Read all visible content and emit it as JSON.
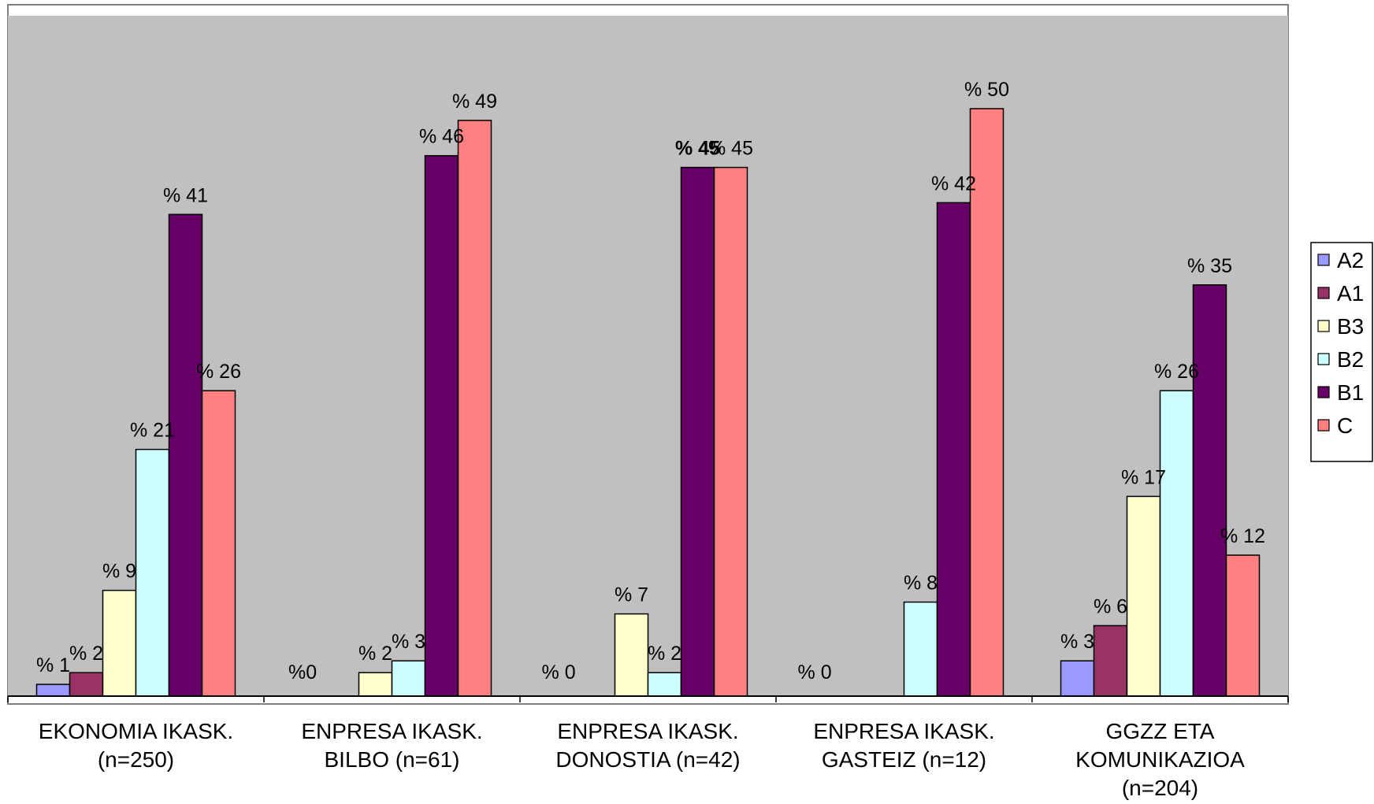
{
  "chart_data": {
    "type": "bar",
    "categories": [
      [
        "EKONOMIA IKASK.",
        "(n=250)"
      ],
      [
        "ENPRESA IKASK.",
        "BILBO (n=61)"
      ],
      [
        "ENPRESA IKASK.",
        "DONOSTIA (n=42)"
      ],
      [
        "ENPRESA IKASK.",
        "GASTEIZ (n=12)"
      ],
      [
        "GGZZ ETA",
        "KOMUNIKAZIOA",
        "(n=204)"
      ]
    ],
    "series": [
      {
        "name": "A2",
        "color": "#9999ff",
        "values": [
          1,
          0,
          0,
          0,
          3
        ],
        "labels": [
          "% 1",
          "",
          "",
          "",
          "% 3"
        ]
      },
      {
        "name": "A1",
        "color": "#993366",
        "values": [
          2,
          0,
          0,
          0,
          6
        ],
        "labels": [
          "% 2",
          "",
          "",
          "",
          "% 6"
        ]
      },
      {
        "name": "B3",
        "color": "#ffffcc",
        "values": [
          9,
          2,
          7,
          0,
          17
        ],
        "labels": [
          "% 9",
          "% 2",
          "% 7",
          "",
          "% 17"
        ]
      },
      {
        "name": "B2",
        "color": "#ccffff",
        "values": [
          21,
          3,
          2,
          8,
          26
        ],
        "labels": [
          "% 21",
          "% 3",
          "% 2",
          "% 8",
          "% 26"
        ]
      },
      {
        "name": "B1",
        "color": "#660066",
        "values": [
          41,
          46,
          45,
          42,
          35
        ],
        "labels": [
          "% 41",
          "% 46",
          "% 45",
          "% 42",
          "% 35"
        ]
      },
      {
        "name": "C",
        "color": "#ff8080",
        "values": [
          26,
          49,
          45,
          50,
          12
        ],
        "labels": [
          "% 26",
          "% 49",
          "% 45",
          "% 50",
          "% 12"
        ]
      }
    ],
    "zero_labels": [
      "",
      "%0",
      "% 0",
      "% 0",
      ""
    ],
    "bold_labels": [
      {
        "series": 4,
        "category": 2
      }
    ],
    "ylim": [
      0,
      60
    ],
    "grid": false,
    "legend": "right",
    "plot_background": "#c0c0c0",
    "title": "",
    "xlabel": "",
    "ylabel": ""
  }
}
